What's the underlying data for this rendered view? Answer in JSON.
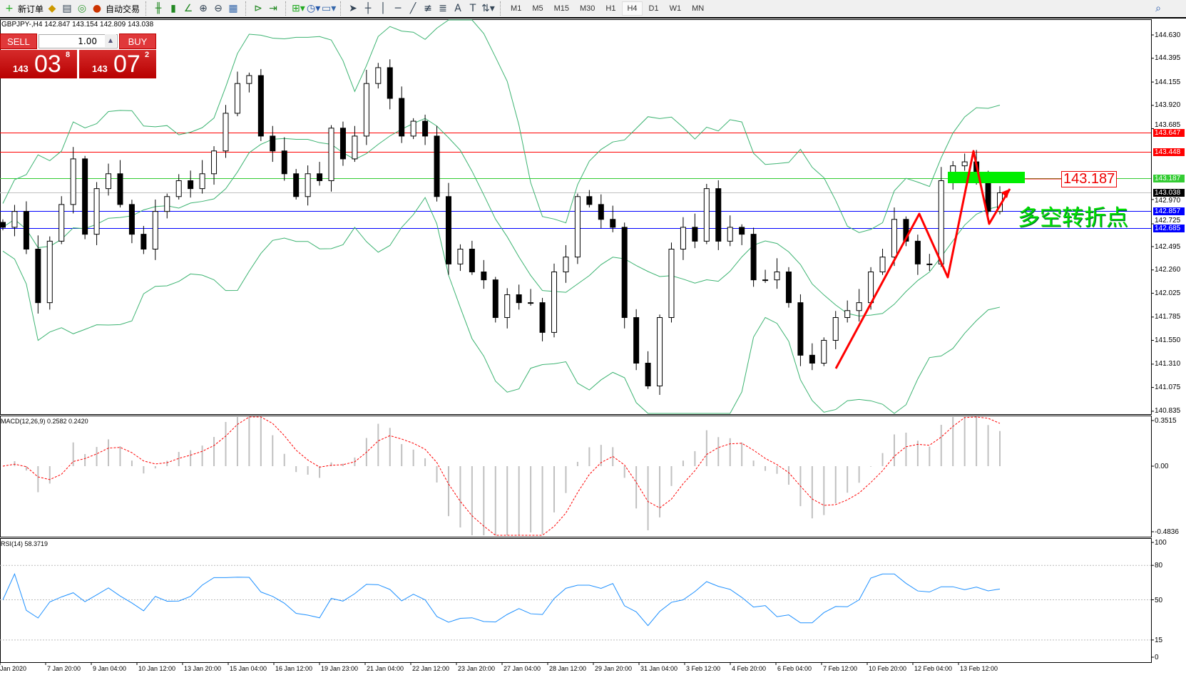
{
  "toolbar": {
    "new_order": "新订单",
    "auto_trading": "自动交易",
    "icons": [
      "new-order-icon",
      "metaeditor-icon",
      "history-icon",
      "signals-icon",
      "auto-trading-icon",
      "bar-chart-icon",
      "candlestick-icon",
      "line-chart-icon",
      "zoom-in-icon",
      "zoom-out-icon",
      "tile-windows-icon",
      "autoscroll-icon",
      "chart-shift-icon",
      "indicators-icon",
      "periods-icon",
      "templates-icon",
      "cursor-icon",
      "crosshair-icon",
      "vertical-line-icon",
      "horizontal-line-icon",
      "trendline-icon",
      "fibonacci-icon",
      "fib-fan-icon",
      "text-icon",
      "label-icon",
      "arrows-icon"
    ],
    "timeframes": [
      "M1",
      "M5",
      "M15",
      "M30",
      "H1",
      "H4",
      "D1",
      "W1",
      "MN"
    ],
    "active_timeframe": "H4"
  },
  "chart": {
    "header": "GBPJPY-,H4  142.847 143.154 142.809 143.038",
    "one_click": {
      "sell": "SELL",
      "buy": "BUY",
      "lot": "1.00",
      "sell_big": "143",
      "sell_mid": "03",
      "sell_sup": "8",
      "buy_big": "143",
      "buy_mid": "07",
      "buy_sup": "2"
    },
    "price_ticks": [
      "144.630",
      "144.395",
      "144.155",
      "143.920",
      "143.685",
      "142.970",
      "142.725",
      "142.495",
      "142.260",
      "142.025",
      "141.785",
      "141.550",
      "141.310",
      "141.075",
      "140.835"
    ],
    "levels": [
      {
        "price": 143.647,
        "label": "143.647",
        "color": "#ff0000"
      },
      {
        "price": 143.448,
        "label": "143.448",
        "color": "#ff0000"
      },
      {
        "price": 143.187,
        "label": "143.187",
        "color": "#33cc33"
      },
      {
        "price": 143.038,
        "label": "143.038",
        "color": "#000000"
      },
      {
        "price": 142.857,
        "label": "142.857",
        "color": "#0000ff"
      },
      {
        "price": 142.685,
        "label": "142.685",
        "color": "#0000ff"
      }
    ],
    "annotation_price": "143.187",
    "annotation_text": "多空转折点",
    "closes": [
      142.69,
      142.85,
      142.47,
      141.93,
      142.55,
      142.92,
      143.38,
      142.62,
      143.08,
      143.23,
      142.92,
      142.62,
      142.47,
      142.85,
      143.0,
      143.16,
      143.08,
      143.23,
      143.46,
      143.84,
      144.14,
      144.22,
      143.61,
      143.46,
      143.23,
      143.0,
      143.23,
      143.16,
      143.69,
      143.38,
      143.61,
      144.14,
      144.3,
      143.99,
      143.61,
      143.76,
      143.61,
      143.0,
      142.32,
      142.47,
      142.24,
      142.16,
      141.78,
      142.01,
      141.93,
      141.93,
      141.63,
      142.24,
      142.39,
      143.0,
      142.92,
      142.77,
      142.69,
      141.78,
      141.32,
      141.09,
      141.78,
      142.47,
      142.69,
      142.55,
      143.08,
      142.55,
      142.69,
      142.62,
      142.16,
      142.16,
      142.24,
      141.93,
      141.4,
      141.32,
      141.55,
      141.78,
      141.85,
      141.93,
      142.24,
      142.39,
      142.77,
      142.55,
      142.32,
      142.32,
      143.16,
      143.31,
      143.35,
      143.23,
      142.85,
      143.038
    ]
  },
  "macd": {
    "label": "MACD(12,26,9) 0.2582 0.2420",
    "ticks": [
      "0.3515",
      "0.00",
      "-0.4836"
    ]
  },
  "rsi": {
    "label": "RSI(14) 58.3719",
    "ticks": [
      "100",
      "80",
      "50",
      "15",
      "0"
    ]
  },
  "dates": [
    "Jan 2020",
    "7 Jan 20:00",
    "9 Jan 04:00",
    "10 Jan 12:00",
    "13 Jan 20:00",
    "15 Jan 04:00",
    "16 Jan 12:00",
    "19 Jan 23:00",
    "21 Jan 04:00",
    "22 Jan 12:00",
    "23 Jan 20:00",
    "27 Jan 04:00",
    "28 Jan 12:00",
    "29 Jan 20:00",
    "31 Jan 04:00",
    "3 Feb 12:00",
    "4 Feb 20:00",
    "6 Feb 04:00",
    "7 Feb 12:00",
    "10 Feb 20:00",
    "12 Feb 04:00",
    "13 Feb 12:00"
  ],
  "colors": {
    "bands": "#3cb371",
    "signal": "#ff0000",
    "rsi": "#1e90ff",
    "histogram": "#c0c0c0"
  }
}
